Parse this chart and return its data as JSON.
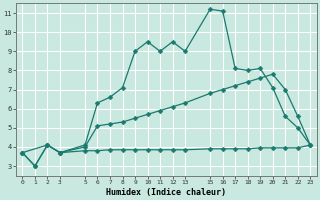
{
  "xlabel": "Humidex (Indice chaleur)",
  "bg_color": "#c8e8e0",
  "grid_color": "#ffffff",
  "line_color": "#1a7a6e",
  "xlim": [
    -0.5,
    23.5
  ],
  "ylim": [
    2.5,
    11.5
  ],
  "xtick_positions": [
    0,
    1,
    2,
    3,
    5,
    6,
    7,
    8,
    9,
    10,
    11,
    12,
    13,
    15,
    16,
    17,
    18,
    19,
    20,
    21,
    22,
    23
  ],
  "xtick_labels": [
    "0",
    "1",
    "2",
    "3",
    "5",
    "6",
    "7",
    "8",
    "9",
    "10",
    "11",
    "12",
    "13",
    "15",
    "16",
    "17",
    "18",
    "19",
    "20",
    "21",
    "22",
    "23"
  ],
  "ytick_positions": [
    3,
    4,
    5,
    6,
    7,
    8,
    9,
    10,
    11
  ],
  "ytick_labels": [
    "3",
    "4",
    "5",
    "6",
    "7",
    "8",
    "9",
    "10",
    "11"
  ],
  "line1_x": [
    0,
    1,
    2,
    3,
    5,
    6,
    7,
    8,
    9,
    10,
    11,
    12,
    13,
    15,
    16,
    17,
    18,
    19,
    20,
    21,
    22,
    23
  ],
  "line1_y": [
    3.7,
    3.0,
    4.1,
    3.7,
    4.1,
    6.3,
    6.6,
    7.1,
    9.0,
    9.5,
    9.0,
    9.5,
    9.0,
    11.2,
    11.1,
    8.1,
    8.0,
    8.1,
    7.1,
    5.6,
    5.0,
    4.1
  ],
  "line2_x": [
    0,
    2,
    3,
    5,
    6,
    7,
    8,
    9,
    10,
    11,
    12,
    13,
    15,
    16,
    17,
    18,
    19,
    20,
    21,
    22,
    23
  ],
  "line2_y": [
    3.7,
    4.1,
    3.7,
    4.0,
    5.1,
    5.2,
    5.3,
    5.5,
    5.7,
    5.9,
    6.1,
    6.3,
    6.8,
    7.0,
    7.2,
    7.4,
    7.6,
    7.8,
    7.0,
    5.6,
    4.1
  ],
  "line3_x": [
    0,
    1,
    2,
    3,
    5,
    6,
    7,
    8,
    9,
    10,
    11,
    12,
    13,
    15,
    16,
    17,
    18,
    19,
    20,
    21,
    22,
    23
  ],
  "line3_y": [
    3.7,
    3.0,
    4.1,
    3.7,
    3.8,
    3.8,
    3.85,
    3.85,
    3.85,
    3.85,
    3.85,
    3.85,
    3.85,
    3.9,
    3.9,
    3.9,
    3.9,
    3.95,
    3.95,
    3.95,
    3.95,
    4.1
  ]
}
